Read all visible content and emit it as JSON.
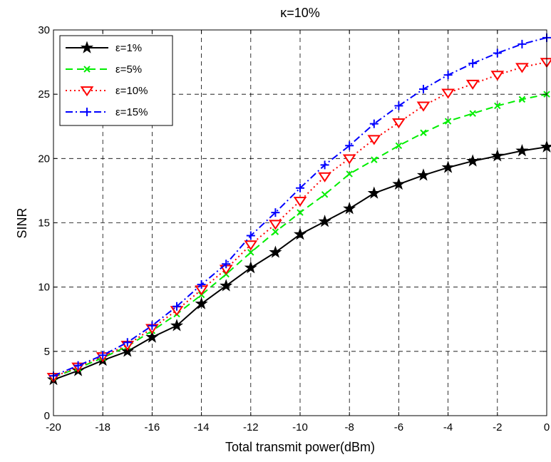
{
  "chart_data": {
    "type": "line",
    "title": "κ=10%",
    "xlabel": "Total transmit power(dBm)",
    "ylabel": "SINR",
    "xlim": [
      -20,
      0
    ],
    "ylim": [
      0,
      30
    ],
    "xticks": [
      -20,
      -18,
      -16,
      -14,
      -12,
      -10,
      -8,
      -6,
      -4,
      -2,
      0
    ],
    "yticks": [
      0,
      5,
      10,
      15,
      20,
      25,
      30
    ],
    "grid": true,
    "legend_position": "top-left",
    "x": [
      -20,
      -19,
      -18,
      -17,
      -16,
      -15,
      -14,
      -13,
      -12,
      -11,
      -10,
      -9,
      -8,
      -7,
      -6,
      -5,
      -4,
      -3,
      -2,
      -1,
      0
    ],
    "series": [
      {
        "name": "ε=1%",
        "color": "#000000",
        "dash": "solid",
        "marker": "star",
        "values": [
          2.8,
          3.5,
          4.3,
          5.0,
          6.1,
          7.0,
          8.7,
          10.1,
          11.5,
          12.7,
          14.1,
          15.1,
          16.1,
          17.3,
          18.0,
          18.7,
          19.3,
          19.8,
          20.2,
          20.6,
          20.9
        ]
      },
      {
        "name": "ε=5%",
        "color": "#00ee00",
        "dash": "dashed",
        "marker": "x",
        "values": [
          3.0,
          3.7,
          4.5,
          5.4,
          6.6,
          7.9,
          9.4,
          11.0,
          12.7,
          14.3,
          15.8,
          17.2,
          18.8,
          19.9,
          21.0,
          22.0,
          22.9,
          23.5,
          24.1,
          24.6,
          25.0
        ]
      },
      {
        "name": "ε=10%",
        "color": "#ff0000",
        "dash": "dotted",
        "marker": "triangle-down",
        "values": [
          3.0,
          3.8,
          4.6,
          5.5,
          6.8,
          8.2,
          9.8,
          11.4,
          13.3,
          14.9,
          16.7,
          18.6,
          20.0,
          21.5,
          22.8,
          24.1,
          25.1,
          25.8,
          26.5,
          27.1,
          27.5
        ]
      },
      {
        "name": "ε=15%",
        "color": "#0000ff",
        "dash": "dashdot",
        "marker": "plus",
        "values": [
          3.1,
          3.9,
          4.7,
          5.7,
          7.0,
          8.5,
          10.2,
          11.8,
          14.0,
          15.8,
          17.7,
          19.5,
          21.0,
          22.7,
          24.1,
          25.4,
          26.5,
          27.4,
          28.2,
          28.9,
          29.4
        ]
      }
    ]
  }
}
